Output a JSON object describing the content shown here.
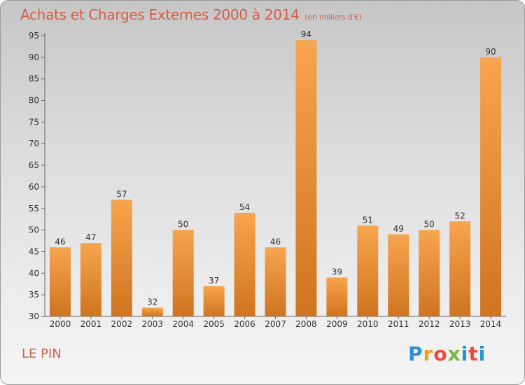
{
  "title": "Achats et Charges Externes 2000 à 2014",
  "unit_note": "(en milliers d'€)",
  "commune": "LE PIN",
  "logo": {
    "letters": [
      "P",
      "r",
      "o",
      "x",
      "i",
      "t",
      "i"
    ],
    "colors": [
      "#2a8fd6",
      "#f39a1c",
      "#e94b3c",
      "#7ab648",
      "#2a8fd6",
      "#e94b3c",
      "#2a8fd6"
    ]
  },
  "colors": {
    "bar_light": "#f7a54e",
    "bar_dark": "#cf7420",
    "title": "#d0604a"
  },
  "chart_data": {
    "type": "bar",
    "categories": [
      "2000",
      "2001",
      "2002",
      "2003",
      "2004",
      "2005",
      "2006",
      "2007",
      "2008",
      "2009",
      "2010",
      "2011",
      "2012",
      "2013",
      "2014"
    ],
    "values": [
      46,
      47,
      57,
      32,
      50,
      37,
      54,
      46,
      94,
      39,
      51,
      49,
      50,
      52,
      90
    ],
    "ylim": [
      30,
      95
    ],
    "yticks": [
      30,
      35,
      40,
      45,
      50,
      55,
      60,
      65,
      70,
      75,
      80,
      85,
      90,
      95
    ],
    "grid": false,
    "data_labels": true
  }
}
